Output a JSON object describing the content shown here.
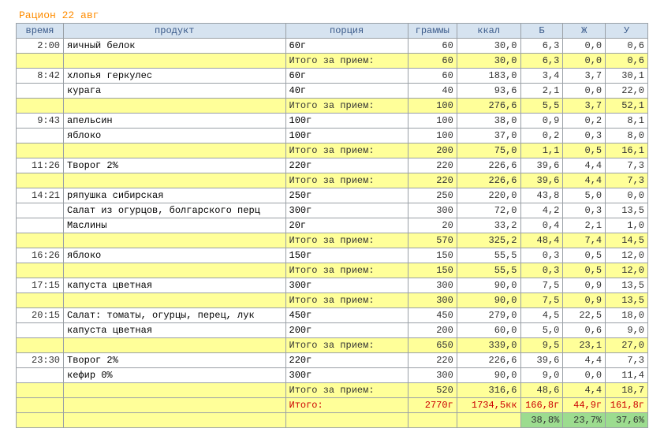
{
  "title": "Рацион 22 авг",
  "headers": {
    "time": "время",
    "product": "продукт",
    "portion": "порция",
    "grams": "граммы",
    "kcal": "ккал",
    "b": "Б",
    "j": "Ж",
    "u": "У"
  },
  "subtotal_label": "Итого за прием:",
  "grand_total_label": "Итого:",
  "meals": [
    {
      "time": "2:00",
      "items": [
        {
          "product": "яичный белок",
          "portion": "60г",
          "grams": "60",
          "kcal": "30,0",
          "b": "6,3",
          "j": "0,0",
          "u": "0,6"
        }
      ],
      "subtotal": {
        "grams": "60",
        "kcal": "30,0",
        "b": "6,3",
        "j": "0,0",
        "u": "0,6"
      }
    },
    {
      "time": "8:42",
      "items": [
        {
          "product": "хлопья геркулес",
          "portion": "60г",
          "grams": "60",
          "kcal": "183,0",
          "b": "3,4",
          "j": "3,7",
          "u": "30,1"
        },
        {
          "product": "курага",
          "portion": "40г",
          "grams": "40",
          "kcal": "93,6",
          "b": "2,1",
          "j": "0,0",
          "u": "22,0"
        }
      ],
      "subtotal": {
        "grams": "100",
        "kcal": "276,6",
        "b": "5,5",
        "j": "3,7",
        "u": "52,1"
      }
    },
    {
      "time": "9:43",
      "items": [
        {
          "product": "апельсин",
          "portion": "100г",
          "grams": "100",
          "kcal": "38,0",
          "b": "0,9",
          "j": "0,2",
          "u": "8,1"
        },
        {
          "product": "яблоко",
          "portion": "100г",
          "grams": "100",
          "kcal": "37,0",
          "b": "0,2",
          "j": "0,3",
          "u": "8,0"
        }
      ],
      "subtotal": {
        "grams": "200",
        "kcal": "75,0",
        "b": "1,1",
        "j": "0,5",
        "u": "16,1"
      }
    },
    {
      "time": "11:26",
      "items": [
        {
          "product": "Творог 2%",
          "portion": "220г",
          "grams": "220",
          "kcal": "226,6",
          "b": "39,6",
          "j": "4,4",
          "u": "7,3"
        }
      ],
      "subtotal": {
        "grams": "220",
        "kcal": "226,6",
        "b": "39,6",
        "j": "4,4",
        "u": "7,3"
      }
    },
    {
      "time": "14:21",
      "items": [
        {
          "product": "ряпушка сибирская",
          "portion": "250г",
          "grams": "250",
          "kcal": "220,0",
          "b": "43,8",
          "j": "5,0",
          "u": "0,0"
        },
        {
          "product": "Салат из огурцов, болгарского перц",
          "portion": "300г",
          "grams": "300",
          "kcal": "72,0",
          "b": "4,2",
          "j": "0,3",
          "u": "13,5"
        },
        {
          "product": "Маслины",
          "portion": "20г",
          "grams": "20",
          "kcal": "33,2",
          "b": "0,4",
          "j": "2,1",
          "u": "1,0"
        }
      ],
      "subtotal": {
        "grams": "570",
        "kcal": "325,2",
        "b": "48,4",
        "j": "7,4",
        "u": "14,5"
      }
    },
    {
      "time": "16:26",
      "items": [
        {
          "product": "яблоко",
          "portion": "150г",
          "grams": "150",
          "kcal": "55,5",
          "b": "0,3",
          "j": "0,5",
          "u": "12,0"
        }
      ],
      "subtotal": {
        "grams": "150",
        "kcal": "55,5",
        "b": "0,3",
        "j": "0,5",
        "u": "12,0"
      }
    },
    {
      "time": "17:15",
      "items": [
        {
          "product": "капуста цветная",
          "portion": "300г",
          "grams": "300",
          "kcal": "90,0",
          "b": "7,5",
          "j": "0,9",
          "u": "13,5"
        }
      ],
      "subtotal": {
        "grams": "300",
        "kcal": "90,0",
        "b": "7,5",
        "j": "0,9",
        "u": "13,5"
      }
    },
    {
      "time": "20:15",
      "items": [
        {
          "product": "Салат: томаты, огурцы, перец, лук",
          "portion": "450г",
          "grams": "450",
          "kcal": "279,0",
          "b": "4,5",
          "j": "22,5",
          "u": "18,0"
        },
        {
          "product": "капуста цветная",
          "portion": "200г",
          "grams": "200",
          "kcal": "60,0",
          "b": "5,0",
          "j": "0,6",
          "u": "9,0"
        }
      ],
      "subtotal": {
        "grams": "650",
        "kcal": "339,0",
        "b": "9,5",
        "j": "23,1",
        "u": "27,0"
      }
    },
    {
      "time": "23:30",
      "items": [
        {
          "product": "Творог 2%",
          "portion": "220г",
          "grams": "220",
          "kcal": "226,6",
          "b": "39,6",
          "j": "4,4",
          "u": "7,3"
        },
        {
          "product": "кефир 0%",
          "portion": "300г",
          "grams": "300",
          "kcal": "90,0",
          "b": "9,0",
          "j": "0,0",
          "u": "11,4"
        }
      ],
      "subtotal": {
        "grams": "520",
        "kcal": "316,6",
        "b": "48,6",
        "j": "4,4",
        "u": "18,7"
      }
    }
  ],
  "grand_total": {
    "grams": "2770г",
    "kcal": "1734,5кк",
    "b": "166,8г",
    "j": "44,9г",
    "u": "161,8г"
  },
  "percent": {
    "b": "38,8%",
    "j": "23,7%",
    "u": "37,6%"
  },
  "colors": {
    "header_bg": "#d6e3f0",
    "header_fg": "#3a5a8a",
    "highlight_bg": "#ffff99",
    "total_fg": "#cc0000",
    "percent_bg": "#9cdc8f",
    "title_fg": "#ff8c00",
    "border": "#9aa0a6"
  }
}
